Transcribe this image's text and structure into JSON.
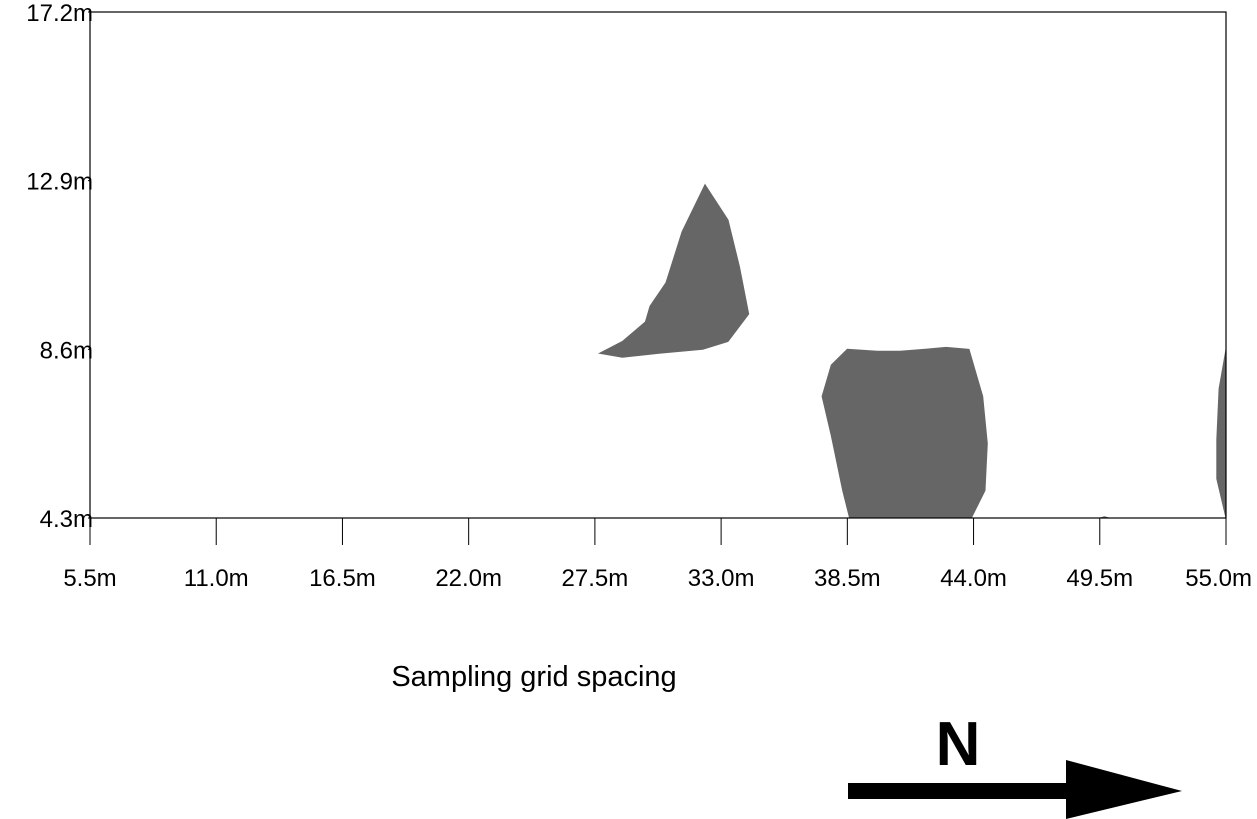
{
  "chart_data": {
    "type": "contour",
    "title": "",
    "xlabel": "Sampling grid spacing",
    "ylabel": "",
    "xlim": [
      5.5,
      55.0
    ],
    "ylim": [
      4.3,
      17.2
    ],
    "x_ticks": [
      {
        "value": 5.5,
        "label": "5.5m"
      },
      {
        "value": 11.0,
        "label": "11.0m"
      },
      {
        "value": 16.5,
        "label": "16.5m"
      },
      {
        "value": 22.0,
        "label": "22.0m"
      },
      {
        "value": 27.5,
        "label": "27.5m"
      },
      {
        "value": 33.0,
        "label": "33.0m"
      },
      {
        "value": 38.5,
        "label": "38.5m"
      },
      {
        "value": 44.0,
        "label": "44.0m"
      },
      {
        "value": 49.5,
        "label": "49.5m"
      },
      {
        "value": 55.0,
        "label": "55.0m"
      }
    ],
    "y_ticks": [
      {
        "value": 4.3,
        "label": "4.3m"
      },
      {
        "value": 8.6,
        "label": "8.6m"
      },
      {
        "value": 12.9,
        "label": "12.9m"
      },
      {
        "value": 17.2,
        "label": "17.2m"
      }
    ],
    "grid": false,
    "fill_color": "#666666",
    "regions": [
      {
        "points": [
          [
            27.7,
            8.5
          ],
          [
            28.7,
            8.8
          ],
          [
            29.7,
            9.3
          ],
          [
            29.9,
            9.7
          ],
          [
            30.6,
            10.3
          ],
          [
            31.3,
            11.6
          ],
          [
            32.3,
            12.8
          ],
          [
            33.3,
            11.9
          ],
          [
            33.8,
            10.7
          ],
          [
            34.2,
            9.5
          ],
          [
            33.3,
            8.8
          ],
          [
            32.2,
            8.6
          ],
          [
            30.3,
            8.5
          ],
          [
            28.7,
            8.4
          ]
        ]
      },
      {
        "points": [
          [
            38.6,
            4.3
          ],
          [
            38.3,
            5.0
          ],
          [
            37.8,
            6.4
          ],
          [
            37.4,
            7.4
          ],
          [
            37.8,
            8.2
          ],
          [
            38.5,
            8.6
          ],
          [
            39.8,
            8.55
          ],
          [
            40.8,
            8.55
          ],
          [
            41.9,
            8.6
          ],
          [
            42.8,
            8.65
          ],
          [
            43.8,
            8.6
          ],
          [
            44.4,
            7.4
          ],
          [
            44.6,
            6.2
          ],
          [
            44.5,
            5.0
          ],
          [
            43.9,
            4.3
          ]
        ]
      },
      {
        "points": [
          [
            55.0,
            4.3
          ],
          [
            54.6,
            5.3
          ],
          [
            54.6,
            6.3
          ],
          [
            54.7,
            7.6
          ],
          [
            55.0,
            8.6
          ]
        ]
      },
      {
        "points": [
          [
            49.5,
            4.3
          ],
          [
            49.7,
            4.33
          ],
          [
            49.9,
            4.3
          ]
        ]
      }
    ]
  },
  "north_arrow": {
    "label": "N"
  }
}
